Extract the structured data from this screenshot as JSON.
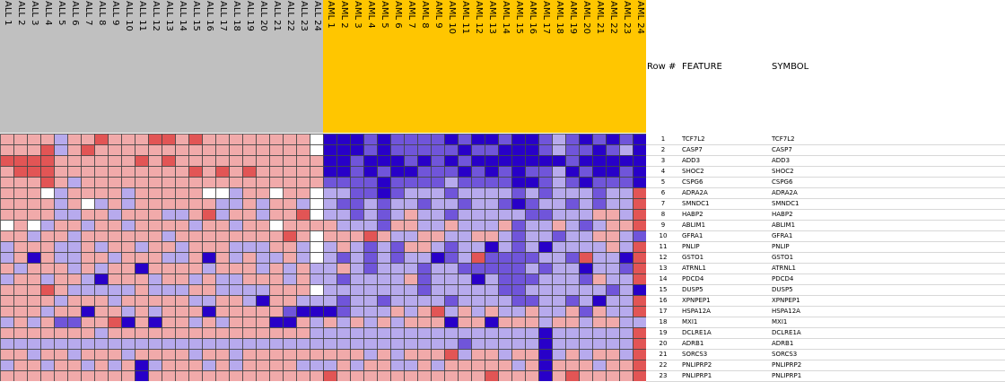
{
  "header": {
    "row_label": "Row #",
    "feature_label": "FEATURE",
    "symbol_label": "SYMBOL"
  },
  "colors": {
    "all_band": "#c0c0c0",
    "aml_band": "#ffc600",
    "high": "#d40000",
    "low": "#2800c8",
    "mid": "#ffffff",
    "cell_border": "#444444"
  },
  "chart_data": {
    "type": "heatmap",
    "title": "",
    "xlabel": "",
    "ylabel": "",
    "color_scale": [
      "#2800c8",
      "#ffffff",
      "#d40000"
    ],
    "value_range": [
      -3,
      3
    ],
    "groups": [
      {
        "name": "ALL",
        "count": 24
      },
      {
        "name": "AML",
        "count": 24
      }
    ],
    "columns": [
      "ALL 1",
      "ALL 2",
      "ALL 3",
      "ALL 4",
      "ALL 5",
      "ALL 6",
      "ALL 7",
      "ALL 8",
      "ALL 9",
      "ALL 10",
      "ALL 11",
      "ALL 12",
      "ALL 13",
      "ALL 14",
      "ALL 15",
      "ALL 16",
      "ALL 17",
      "ALL 18",
      "ALL 19",
      "ALL 20",
      "ALL 21",
      "ALL 22",
      "ALL 23",
      "ALL 24",
      "AML 1",
      "AML 2",
      "AML 3",
      "AML 4",
      "AML 5",
      "AML 6",
      "AML 7",
      "AML 8",
      "AML 9",
      "AML 10",
      "AML 11",
      "AML 12",
      "AML 13",
      "AML 14",
      "AML 15",
      "AML 16",
      "AML 17",
      "AML 18",
      "AML 19",
      "AML 20",
      "AML 21",
      "AML 22",
      "AML 23",
      "AML 24"
    ],
    "rows": [
      {
        "num": "1",
        "feature": "TCF7L2",
        "symbol": "TCF7L2"
      },
      {
        "num": "2",
        "feature": "CASP7",
        "symbol": "CASP7"
      },
      {
        "num": "3",
        "feature": "ADD3",
        "symbol": "ADD3"
      },
      {
        "num": "4",
        "feature": "SHOC2",
        "symbol": "SHOC2"
      },
      {
        "num": "5",
        "feature": "CSPG6",
        "symbol": "CSPG6"
      },
      {
        "num": "6",
        "feature": "ADRA2A",
        "symbol": "ADRA2A"
      },
      {
        "num": "7",
        "feature": "SMNDC1",
        "symbol": "SMNDC1"
      },
      {
        "num": "8",
        "feature": "HABP2",
        "symbol": "HABP2"
      },
      {
        "num": "9",
        "feature": "ABLIM1",
        "symbol": "ABLIM1"
      },
      {
        "num": "10",
        "feature": "GFRA1",
        "symbol": "GFRA1"
      },
      {
        "num": "11",
        "feature": "PNLIP",
        "symbol": "PNLIP"
      },
      {
        "num": "12",
        "feature": "GSTO1",
        "symbol": "GSTO1"
      },
      {
        "num": "13",
        "feature": "ATRNL1",
        "symbol": "ATRNL1"
      },
      {
        "num": "14",
        "feature": "PDCD4",
        "symbol": "PDCD4"
      },
      {
        "num": "15",
        "feature": "DUSP5",
        "symbol": "DUSP5"
      },
      {
        "num": "16",
        "feature": "XPNPEP1",
        "symbol": "XPNPEP1"
      },
      {
        "num": "17",
        "feature": "HSPA12A",
        "symbol": "HSPA12A"
      },
      {
        "num": "18",
        "feature": "MXI1",
        "symbol": "MXI1"
      },
      {
        "num": "19",
        "feature": "DCLRE1A",
        "symbol": "DCLRE1A"
      },
      {
        "num": "20",
        "feature": "ADRB1",
        "symbol": "ADRB1"
      },
      {
        "num": "21",
        "feature": "SORCS3",
        "symbol": "SORCS3"
      },
      {
        "num": "22",
        "feature": "PNLIPRP2",
        "symbol": "PNLIPRP2"
      },
      {
        "num": "23",
        "feature": "PNLIPRP1",
        "symbol": "PNLIPRP1"
      }
    ],
    "values": [
      [
        1,
        1,
        1,
        1,
        -1,
        1,
        1,
        2,
        1,
        1,
        1,
        2,
        2,
        1,
        2,
        1,
        1,
        1,
        1,
        1,
        1,
        1,
        1,
        0,
        -3,
        -3,
        -3,
        -2,
        -3,
        -2,
        -2,
        -2,
        -2,
        -3,
        -2,
        -3,
        -3,
        -2,
        -3,
        -3,
        -2,
        -1,
        -2,
        -3,
        -2,
        -3,
        -2,
        -3
      ],
      [
        1,
        1,
        1,
        2,
        -1,
        1,
        2,
        1,
        1,
        1,
        1,
        1,
        1,
        1,
        1,
        1,
        1,
        1,
        1,
        1,
        1,
        1,
        1,
        0,
        -3,
        -3,
        -3,
        -2,
        -3,
        -2,
        -2,
        -2,
        -2,
        -2,
        -3,
        -2,
        -2,
        -3,
        -3,
        -3,
        -2,
        -1,
        -2,
        -2,
        -3,
        -2,
        -1,
        -3
      ],
      [
        2,
        2,
        2,
        2,
        1,
        1,
        1,
        1,
        1,
        1,
        2,
        1,
        2,
        1,
        1,
        1,
        1,
        1,
        1,
        1,
        1,
        1,
        1,
        1,
        -3,
        -3,
        -2,
        -3,
        -3,
        -3,
        -2,
        -3,
        -2,
        -3,
        -2,
        -3,
        -3,
        -3,
        -3,
        -3,
        -3,
        -3,
        -2,
        -3,
        -3,
        -3,
        -3,
        -3
      ],
      [
        1,
        2,
        2,
        2,
        1,
        1,
        1,
        1,
        1,
        1,
        1,
        1,
        1,
        1,
        2,
        1,
        2,
        1,
        2,
        1,
        1,
        1,
        1,
        1,
        -3,
        -3,
        -2,
        -3,
        -2,
        -3,
        -3,
        -2,
        -2,
        -2,
        -3,
        -2,
        -3,
        -2,
        -3,
        -2,
        -2,
        -1,
        -3,
        -2,
        -3,
        -3,
        -2,
        -3
      ],
      [
        1,
        1,
        1,
        2,
        1,
        -1,
        1,
        1,
        1,
        1,
        1,
        1,
        1,
        1,
        1,
        1,
        1,
        1,
        1,
        1,
        1,
        1,
        1,
        1,
        -2,
        -2,
        -2,
        -2,
        -3,
        -2,
        -2,
        -2,
        -2,
        -1,
        -2,
        -2,
        -2,
        -2,
        -3,
        -3,
        -2,
        -1,
        -2,
        -3,
        -2,
        -2,
        -2,
        -3
      ],
      [
        1,
        1,
        1,
        0,
        -1,
        1,
        1,
        1,
        1,
        -1,
        1,
        1,
        1,
        1,
        1,
        0,
        0,
        -1,
        1,
        1,
        0,
        1,
        1,
        0,
        -1,
        -1,
        -2,
        -2,
        -3,
        -2,
        -1,
        -1,
        -1,
        -2,
        -1,
        -1,
        -1,
        -1,
        -2,
        -1,
        -2,
        -1,
        -1,
        -1,
        -2,
        -1,
        -1,
        2
      ],
      [
        1,
        1,
        1,
        1,
        -1,
        1,
        0,
        -1,
        1,
        -1,
        1,
        1,
        1,
        1,
        1,
        1,
        -1,
        -1,
        1,
        -1,
        1,
        1,
        -1,
        0,
        -1,
        -2,
        -2,
        -1,
        -2,
        -1,
        -1,
        -2,
        -1,
        -1,
        -2,
        -1,
        -1,
        -2,
        -3,
        -2,
        -1,
        -1,
        -2,
        -1,
        -2,
        -1,
        -1,
        2
      ],
      [
        1,
        1,
        1,
        1,
        -1,
        -1,
        1,
        1,
        -1,
        1,
        1,
        1,
        -1,
        -1,
        1,
        2,
        -1,
        1,
        1,
        -1,
        1,
        1,
        2,
        0,
        -1,
        -1,
        -2,
        -1,
        -2,
        -1,
        1,
        -1,
        -1,
        -2,
        -1,
        -1,
        -1,
        -1,
        -1,
        -2,
        -2,
        -1,
        -1,
        -1,
        1,
        1,
        -1,
        2
      ],
      [
        0,
        1,
        0,
        -1,
        1,
        1,
        -1,
        1,
        1,
        -1,
        1,
        1,
        1,
        1,
        -1,
        1,
        1,
        -1,
        1,
        1,
        0,
        1,
        1,
        1,
        1,
        -1,
        -1,
        -1,
        -2,
        1,
        1,
        -1,
        -1,
        1,
        -1,
        -1,
        -1,
        1,
        -2,
        -1,
        -1,
        1,
        -1,
        -2,
        -1,
        1,
        1,
        2
      ],
      [
        1,
        1,
        -1,
        1,
        1,
        -1,
        1,
        1,
        1,
        1,
        1,
        1,
        -1,
        1,
        1,
        1,
        1,
        1,
        1,
        1,
        1,
        2,
        1,
        0,
        1,
        1,
        1,
        2,
        1,
        -1,
        -1,
        1,
        1,
        -1,
        -1,
        1,
        1,
        -1,
        -2,
        -1,
        -1,
        -2,
        -1,
        -1,
        1,
        1,
        -1,
        -2
      ],
      [
        -1,
        1,
        1,
        1,
        -1,
        -1,
        1,
        -1,
        1,
        1,
        -1,
        1,
        1,
        -1,
        1,
        1,
        1,
        -1,
        -1,
        -1,
        1,
        1,
        -1,
        0,
        -1,
        1,
        -1,
        -2,
        -1,
        -2,
        1,
        1,
        -1,
        -2,
        -1,
        -1,
        -3,
        -1,
        -2,
        -1,
        -3,
        -1,
        -1,
        -1,
        -1,
        1,
        -1,
        2
      ],
      [
        -1,
        1,
        -3,
        1,
        -1,
        -1,
        1,
        1,
        -1,
        1,
        1,
        1,
        -1,
        -1,
        1,
        -3,
        1,
        -1,
        1,
        -1,
        -1,
        1,
        -1,
        0,
        -1,
        -2,
        -1,
        -2,
        -1,
        -2,
        -1,
        -1,
        -3,
        -2,
        -1,
        2,
        -2,
        -2,
        -2,
        -2,
        -1,
        -1,
        -2,
        2,
        -1,
        -1,
        -3,
        2
      ],
      [
        1,
        -1,
        1,
        1,
        1,
        -1,
        1,
        -1,
        1,
        1,
        -3,
        1,
        1,
        1,
        1,
        -1,
        1,
        1,
        1,
        -1,
        1,
        -1,
        1,
        -1,
        -1,
        1,
        -1,
        -2,
        -1,
        -1,
        -1,
        -2,
        -1,
        -1,
        -2,
        -2,
        -2,
        -2,
        -2,
        -1,
        -2,
        -1,
        -1,
        -3,
        -1,
        -1,
        -2,
        2
      ],
      [
        -1,
        1,
        1,
        -1,
        1,
        1,
        -1,
        -3,
        1,
        1,
        1,
        -1,
        1,
        1,
        -1,
        1,
        -1,
        -1,
        1,
        1,
        1,
        -1,
        1,
        -1,
        -1,
        -2,
        -1,
        -1,
        -1,
        -1,
        1,
        -2,
        -1,
        -1,
        -1,
        -3,
        -1,
        -2,
        -2,
        -2,
        -1,
        -1,
        -1,
        -2,
        1,
        -1,
        -1,
        2
      ],
      [
        1,
        1,
        1,
        2,
        1,
        -1,
        -1,
        -1,
        -1,
        -1,
        1,
        -1,
        -1,
        -1,
        1,
        1,
        -1,
        -1,
        -1,
        -1,
        1,
        1,
        1,
        0,
        -1,
        -1,
        -1,
        -1,
        -1,
        -1,
        -1,
        -2,
        -1,
        -1,
        -1,
        -1,
        -1,
        -2,
        -2,
        -1,
        -1,
        -1,
        -1,
        -1,
        -1,
        -2,
        -1,
        -3
      ],
      [
        1,
        1,
        1,
        1,
        -1,
        1,
        1,
        1,
        -1,
        1,
        1,
        1,
        1,
        1,
        -1,
        -1,
        1,
        1,
        -1,
        -3,
        1,
        1,
        -1,
        -1,
        -1,
        -2,
        -1,
        -1,
        -2,
        -1,
        -1,
        -1,
        -1,
        -2,
        -1,
        -1,
        -1,
        -1,
        -2,
        -2,
        -1,
        -1,
        -2,
        -1,
        -3,
        -1,
        -1,
        2
      ],
      [
        1,
        1,
        1,
        -1,
        1,
        1,
        -3,
        1,
        1,
        -1,
        1,
        -1,
        1,
        1,
        1,
        -3,
        1,
        1,
        1,
        1,
        1,
        -2,
        -3,
        -3,
        -3,
        -2,
        -1,
        -1,
        -1,
        1,
        -1,
        1,
        2,
        -1,
        1,
        -1,
        1,
        -1,
        -1,
        1,
        -1,
        -1,
        1,
        -2,
        1,
        -1,
        -1,
        2
      ],
      [
        -1,
        1,
        -1,
        1,
        -2,
        -2,
        1,
        1,
        2,
        -3,
        1,
        -3,
        1,
        1,
        -1,
        1,
        -1,
        1,
        1,
        1,
        -3,
        -3,
        1,
        -1,
        1,
        -1,
        1,
        -1,
        1,
        -1,
        1,
        1,
        1,
        -3,
        1,
        1,
        -3,
        1,
        1,
        1,
        -1,
        1,
        1,
        -1,
        1,
        1,
        -1,
        -1
      ],
      [
        1,
        1,
        1,
        1,
        1,
        1,
        1,
        -1,
        1,
        1,
        1,
        1,
        1,
        1,
        1,
        1,
        1,
        1,
        1,
        1,
        1,
        1,
        1,
        -1,
        -1,
        -1,
        -1,
        -1,
        -1,
        -1,
        -1,
        -1,
        -1,
        -1,
        -1,
        -1,
        -1,
        -1,
        -1,
        -1,
        -3,
        -1,
        -1,
        -1,
        -1,
        -1,
        -1,
        2
      ],
      [
        -1,
        -1,
        -1,
        -1,
        -1,
        -1,
        -1,
        -1,
        -1,
        -1,
        -1,
        -1,
        -1,
        -1,
        -1,
        -1,
        -1,
        -1,
        -1,
        -1,
        -1,
        -1,
        -1,
        -1,
        -1,
        -1,
        -1,
        -1,
        -1,
        -1,
        -1,
        -1,
        -1,
        -1,
        -2,
        -1,
        -1,
        -1,
        -1,
        -1,
        -3,
        -1,
        -1,
        -1,
        -1,
        -1,
        -1,
        2
      ],
      [
        1,
        1,
        -1,
        1,
        1,
        -1,
        1,
        1,
        1,
        -1,
        1,
        1,
        1,
        1,
        -1,
        1,
        1,
        -1,
        1,
        1,
        1,
        1,
        1,
        1,
        1,
        1,
        1,
        -1,
        1,
        -1,
        1,
        1,
        1,
        2,
        -1,
        1,
        1,
        -1,
        1,
        1,
        -3,
        -1,
        1,
        -1,
        1,
        1,
        -1,
        2
      ],
      [
        -1,
        1,
        1,
        -1,
        1,
        1,
        -1,
        1,
        -1,
        1,
        -3,
        -1,
        1,
        1,
        1,
        -1,
        1,
        -1,
        1,
        1,
        1,
        1,
        -1,
        -1,
        -1,
        1,
        -1,
        1,
        1,
        -1,
        -1,
        1,
        -1,
        1,
        1,
        1,
        1,
        1,
        -1,
        1,
        -3,
        1,
        1,
        1,
        -1,
        1,
        1,
        2
      ],
      [
        1,
        1,
        1,
        1,
        1,
        1,
        1,
        1,
        1,
        1,
        -3,
        1,
        1,
        1,
        1,
        1,
        1,
        1,
        1,
        1,
        1,
        1,
        1,
        1,
        2,
        1,
        1,
        1,
        1,
        1,
        1,
        1,
        1,
        1,
        1,
        1,
        2,
        1,
        1,
        1,
        -3,
        1,
        2,
        1,
        1,
        1,
        1,
        2
      ]
    ]
  }
}
